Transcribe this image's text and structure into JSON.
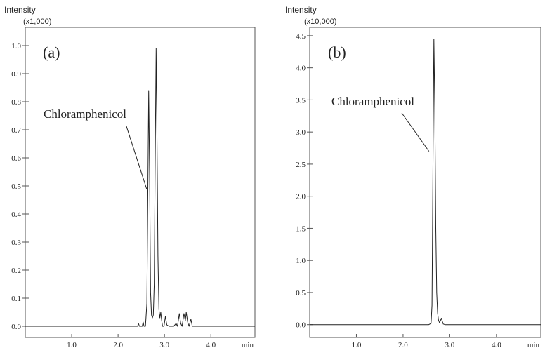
{
  "chart_data": [
    {
      "type": "line",
      "panel_label": "(a)",
      "ylabel": "Intensity",
      "yscale_label": "(x1,000)",
      "xlabel": "min",
      "xlim": [
        0.0,
        4.95
      ],
      "ylim": [
        -0.04,
        1.065
      ],
      "yticks": [
        0.0,
        0.1,
        0.2,
        0.3,
        0.4,
        0.5,
        0.6,
        0.7,
        0.8,
        0.9,
        1.0
      ],
      "ytick_labels": [
        "0.0",
        "0.1",
        "0.2",
        "0.3",
        "0.4",
        "0.5",
        "0.6",
        "0.7",
        "0.8",
        "0.9",
        "1.0"
      ],
      "xticks": [
        1.0,
        2.0,
        3.0,
        4.0
      ],
      "xtick_labels": [
        "1.0",
        "2.0",
        "3.0",
        "4.0"
      ],
      "annotation": {
        "text": "Chloramphenicol",
        "x": 2.66,
        "y": 0.84
      },
      "series": [
        {
          "values": [
            [
              0.0,
              0.0
            ],
            [
              2.35,
              0.0
            ],
            [
              2.42,
              0.0
            ],
            [
              2.44,
              0.01
            ],
            [
              2.46,
              0.0
            ],
            [
              2.52,
              0.0
            ],
            [
              2.54,
              0.015
            ],
            [
              2.56,
              0.0
            ],
            [
              2.59,
              0.0
            ],
            [
              2.62,
              0.08
            ],
            [
              2.64,
              0.45
            ],
            [
              2.66,
              0.84
            ],
            [
              2.68,
              0.55
            ],
            [
              2.7,
              0.12
            ],
            [
              2.72,
              0.04
            ],
            [
              2.74,
              0.03
            ],
            [
              2.76,
              0.04
            ],
            [
              2.78,
              0.15
            ],
            [
              2.8,
              0.6
            ],
            [
              2.82,
              0.99
            ],
            [
              2.84,
              0.65
            ],
            [
              2.86,
              0.25
            ],
            [
              2.88,
              0.06
            ],
            [
              2.9,
              0.03
            ],
            [
              2.92,
              0.05
            ],
            [
              2.94,
              0.02
            ],
            [
              2.96,
              0.0
            ],
            [
              2.99,
              0.0
            ],
            [
              3.02,
              0.035
            ],
            [
              3.05,
              0.005
            ],
            [
              3.1,
              0.0
            ],
            [
              3.2,
              0.0
            ],
            [
              3.25,
              0.01
            ],
            [
              3.28,
              0.0
            ],
            [
              3.32,
              0.045
            ],
            [
              3.35,
              0.01
            ],
            [
              3.38,
              0.0
            ],
            [
              3.42,
              0.045
            ],
            [
              3.45,
              0.02
            ],
            [
              3.47,
              0.05
            ],
            [
              3.5,
              0.015
            ],
            [
              3.53,
              0.0
            ],
            [
              3.57,
              0.025
            ],
            [
              3.6,
              0.0
            ],
            [
              3.65,
              0.0
            ],
            [
              4.95,
              0.0
            ]
          ]
        }
      ]
    },
    {
      "type": "line",
      "panel_label": "(b)",
      "ylabel": "Intensity",
      "yscale_label": "(x10,000)",
      "xlabel": "min",
      "xlim": [
        0.0,
        4.95
      ],
      "ylim": [
        -0.2,
        4.63
      ],
      "yticks": [
        0.0,
        0.5,
        1.0,
        1.5,
        2.0,
        2.5,
        3.0,
        3.5,
        4.0,
        4.5
      ],
      "ytick_labels": [
        "0.0",
        "0.5",
        "1.0",
        "1.5",
        "2.0",
        "2.5",
        "3.0",
        "3.5",
        "4.0",
        "4.5"
      ],
      "xticks": [
        1.0,
        2.0,
        3.0,
        4.0
      ],
      "xtick_labels": [
        "1.0",
        "2.0",
        "3.0",
        "4.0"
      ],
      "annotation": {
        "text": "Chloramphenicol",
        "x": 2.6,
        "y": 2.7
      },
      "series": [
        {
          "values": [
            [
              0.0,
              0.0
            ],
            [
              2.55,
              0.0
            ],
            [
              2.6,
              0.02
            ],
            [
              2.62,
              0.3
            ],
            [
              2.64,
              2.5
            ],
            [
              2.66,
              4.45
            ],
            [
              2.68,
              3.4
            ],
            [
              2.7,
              1.5
            ],
            [
              2.72,
              0.5
            ],
            [
              2.74,
              0.18
            ],
            [
              2.76,
              0.07
            ],
            [
              2.78,
              0.03
            ],
            [
              2.8,
              0.06
            ],
            [
              2.82,
              0.1
            ],
            [
              2.84,
              0.05
            ],
            [
              2.86,
              0.01
            ],
            [
              2.9,
              0.0
            ],
            [
              4.95,
              0.0
            ]
          ]
        }
      ]
    }
  ]
}
